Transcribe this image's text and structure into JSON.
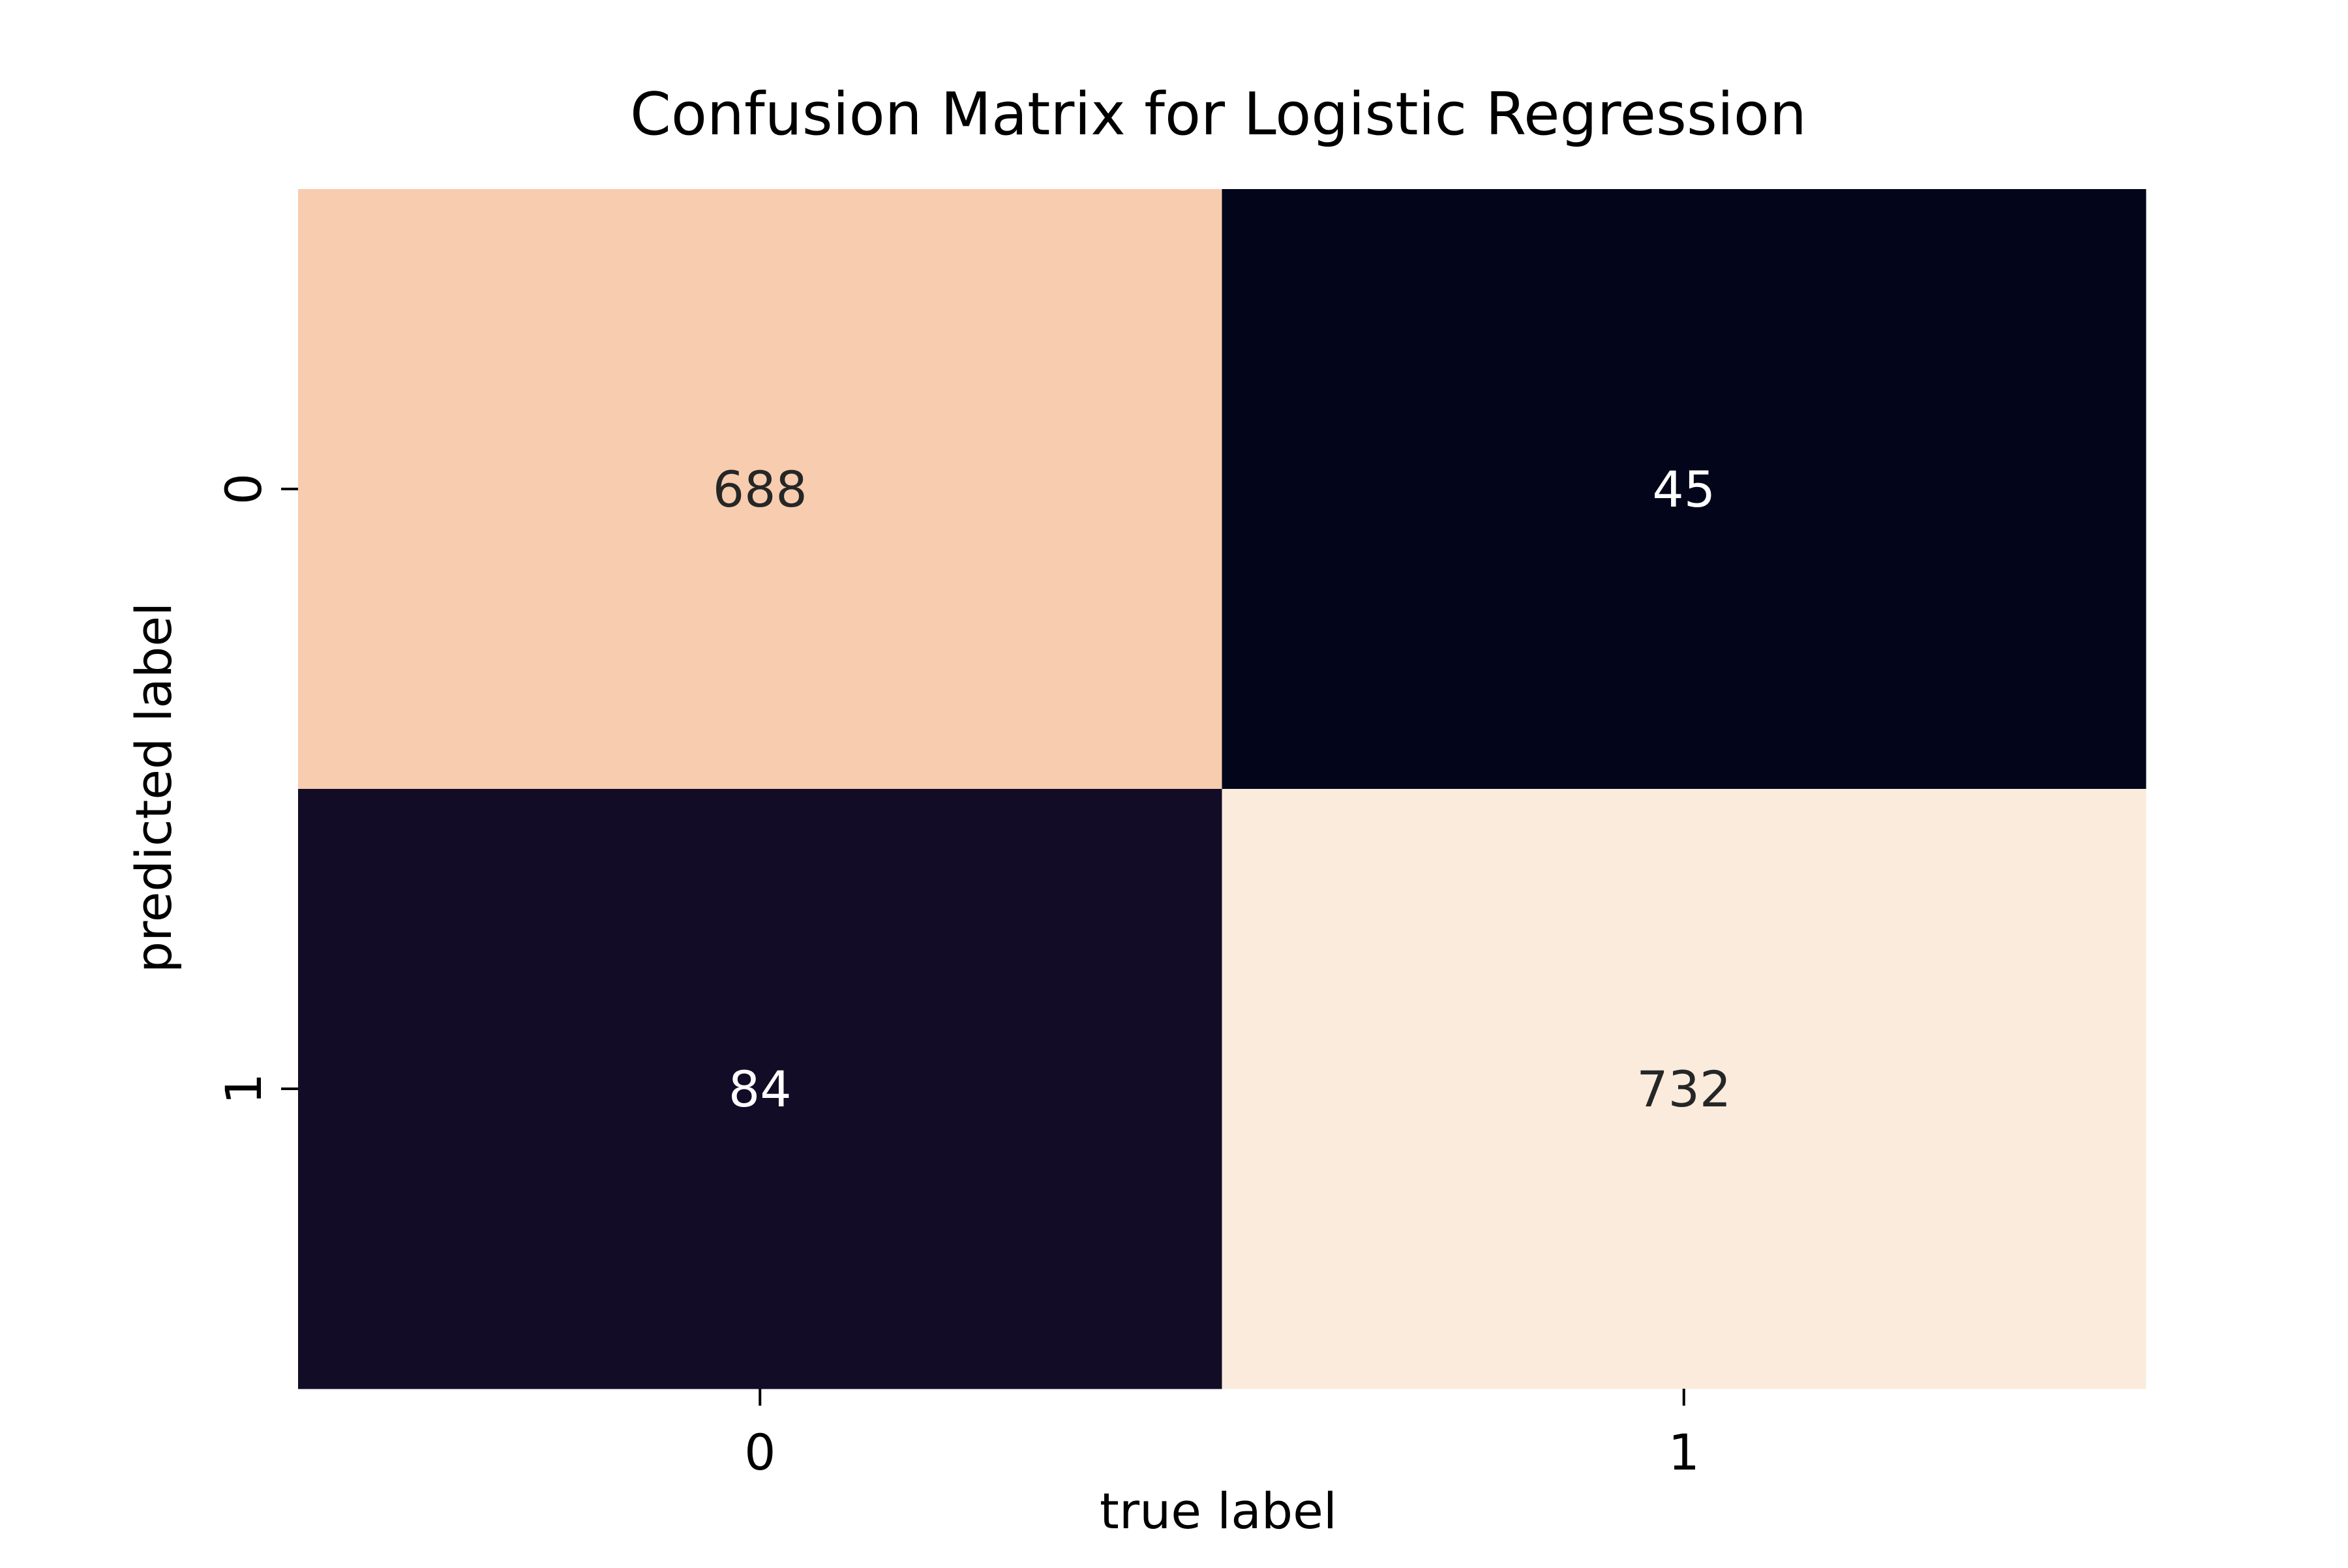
{
  "chart_data": {
    "type": "heatmap",
    "title": "Confusion Matrix for Logistic Regression",
    "xlabel": "true label",
    "ylabel": "predicted label",
    "x_categories": [
      "0",
      "1"
    ],
    "y_categories": [
      "0",
      "1"
    ],
    "values": [
      [
        688,
        45
      ],
      [
        84,
        732
      ]
    ],
    "value_range": [
      45,
      732
    ],
    "colormap": "rocket",
    "colorbar": false,
    "grid": false
  }
}
